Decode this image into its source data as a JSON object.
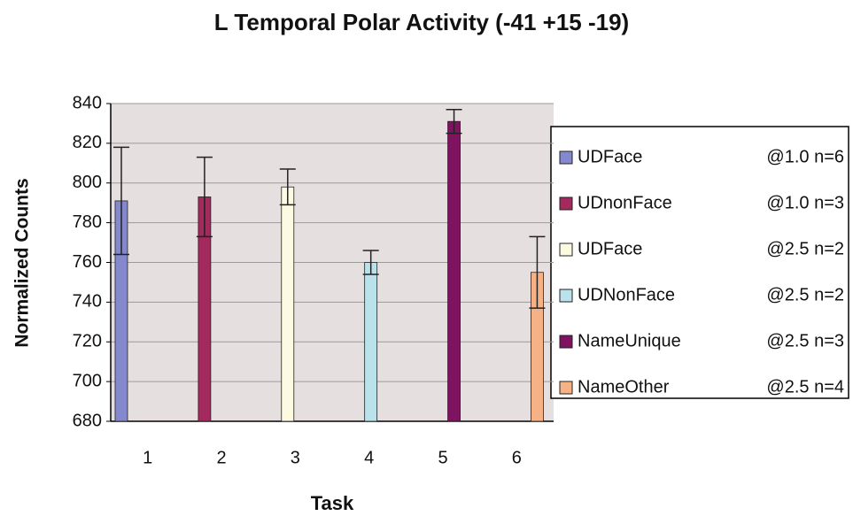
{
  "chart_data": {
    "type": "bar",
    "title": "L Temporal Polar Activity (-41 +15 -19)",
    "x_label": "Task",
    "y_label": "Normalized Counts",
    "categories": [
      "1",
      "2",
      "3",
      "4",
      "5",
      "6"
    ],
    "series": [
      {
        "name": "UDFace",
        "condition": "@1.0 n=6",
        "color": "#8488cc",
        "values": [
          791,
          null,
          null,
          null,
          null,
          null
        ],
        "errors": [
          27,
          null,
          null,
          null,
          null,
          null
        ]
      },
      {
        "name": "UDnonFace",
        "condition": "@1.0 n=3",
        "color": "#a32a5c",
        "values": [
          null,
          793,
          null,
          null,
          null,
          null
        ],
        "errors": [
          null,
          20,
          null,
          null,
          null,
          null
        ]
      },
      {
        "name": "UDFace",
        "condition": "@2.5 n=2",
        "color": "#fcfae0",
        "values": [
          null,
          null,
          798,
          null,
          null,
          null
        ],
        "errors": [
          null,
          null,
          9,
          null,
          null,
          null
        ]
      },
      {
        "name": "UDNonFace",
        "condition": "@2.5 n=2",
        "color": "#b9e2ea",
        "values": [
          null,
          null,
          null,
          760,
          null,
          null
        ],
        "errors": [
          null,
          null,
          null,
          6,
          null,
          null
        ]
      },
      {
        "name": "NameUnique",
        "condition": "@2.5 n=3",
        "color": "#7e1460",
        "values": [
          null,
          null,
          null,
          null,
          831,
          null
        ],
        "errors": [
          null,
          null,
          null,
          null,
          6,
          null
        ]
      },
      {
        "name": "NameOther",
        "condition": "@2.5 n=4",
        "color": "#f6b285",
        "values": [
          null,
          null,
          null,
          null,
          null,
          755
        ],
        "errors": [
          null,
          null,
          null,
          null,
          null,
          18
        ]
      }
    ],
    "ylim": [
      680,
      840
    ],
    "yticks": [
      680,
      700,
      720,
      740,
      760,
      780,
      800,
      820,
      840
    ],
    "grid": true
  }
}
